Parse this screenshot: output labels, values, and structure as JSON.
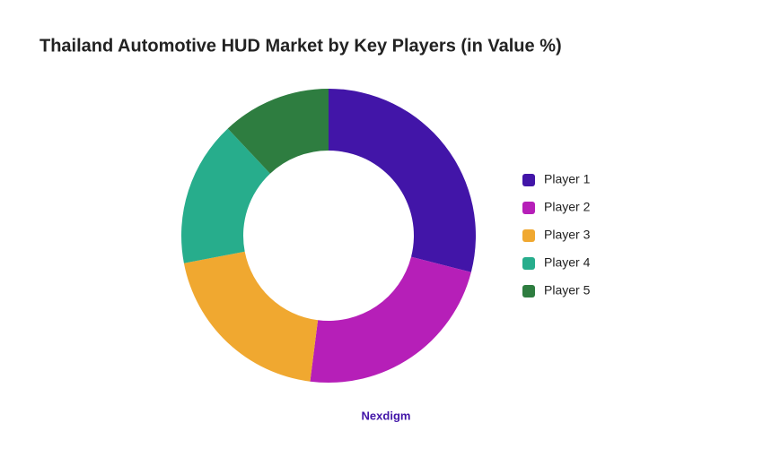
{
  "chart_data": {
    "type": "donut",
    "title": "Thailand Automotive HUD Market by Key Players (in Value %)",
    "categories": [
      "Player 1",
      "Player 2",
      "Player 3",
      "Player 4",
      "Player 5"
    ],
    "values": [
      29,
      23,
      20,
      16,
      12
    ],
    "colors": [
      "#4215a8",
      "#b61fb8",
      "#f0a830",
      "#27ad8c",
      "#2e7d40"
    ],
    "legend": "right",
    "source": "Nexdigm"
  }
}
